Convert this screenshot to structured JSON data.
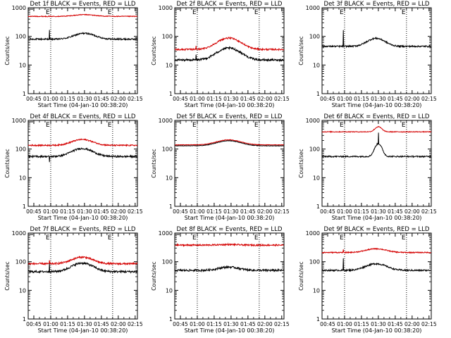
{
  "chart_data": [
    {
      "type": "line",
      "title": "Det 1f BLACK = Events, RED = LLD",
      "xlabel": "Start Time (04-Jan-10 00:38:20)",
      "ylabel": "Counts/sec",
      "yscale": "log",
      "ylim": [
        1,
        1000
      ],
      "y_ticks": [
        "1",
        "10",
        "100",
        "1000"
      ],
      "x_ticks": [
        "00:45",
        "01:00",
        "01:15",
        "01:30",
        "01:45",
        "02:00",
        "02:15"
      ],
      "xlim_min": [
        40,
        137
      ],
      "markers": [
        {
          "t": 60,
          "label": "E"
        },
        {
          "t": 115,
          "label": "E"
        }
      ],
      "grid": false,
      "legend": "none",
      "series": [
        {
          "color": "#000000",
          "base": 80,
          "hump": 1.6,
          "hc": 90,
          "hw": 12,
          "spike": {
            "t": 59,
            "mult": 2.0
          },
          "noise": 0.06
        },
        {
          "color": "#d40000",
          "base": 500,
          "hump": 1.15,
          "hc": 90,
          "hw": 12,
          "spike": null,
          "noise": 0.03
        }
      ]
    },
    {
      "type": "line",
      "title": "Det 2f BLACK = Events, RED = LLD",
      "xlabel": "Start Time (04-Jan-10 00:38:20)",
      "ylabel": "Counts/sec",
      "yscale": "log",
      "ylim": [
        1,
        1000
      ],
      "y_ticks": [
        "1",
        "10",
        "100",
        "1000"
      ],
      "x_ticks": [
        "00:45",
        "01:00",
        "01:15",
        "01:30",
        "01:45",
        "02:00",
        "02:15"
      ],
      "xlim_min": [
        40,
        137
      ],
      "markers": [
        {
          "t": 60,
          "label": "E"
        },
        {
          "t": 115,
          "label": "E"
        }
      ],
      "grid": false,
      "legend": "none",
      "series": [
        {
          "color": "#000000",
          "base": 15,
          "hump": 2.6,
          "hc": 88,
          "hw": 13,
          "spike": {
            "t": 59,
            "mult": 1.5
          },
          "noise": 0.08
        },
        {
          "color": "#d40000",
          "base": 35,
          "hump": 2.5,
          "hc": 88,
          "hw": 13,
          "spike": {
            "t": 59,
            "mult": 1.3
          },
          "noise": 0.06
        }
      ]
    },
    {
      "type": "line",
      "title": "Det 3f BLACK = Events, RED = LLD",
      "xlabel": "Start Time (04-Jan-10 00:38:20)",
      "ylabel": "Counts/sec",
      "yscale": "log",
      "ylim": [
        1,
        1000
      ],
      "y_ticks": [
        "1",
        "10",
        "100",
        "1000"
      ],
      "x_ticks": [
        "00:45",
        "01:00",
        "01:15",
        "01:30",
        "01:45",
        "02:00",
        "02:15"
      ],
      "xlim_min": [
        40,
        137
      ],
      "markers": [
        {
          "t": 60,
          "label": "E"
        },
        {
          "t": 115,
          "label": "E"
        }
      ],
      "grid": false,
      "legend": "none",
      "series": [
        {
          "color": "#000000",
          "base": 45,
          "hump": 1.9,
          "hc": 88,
          "hw": 10,
          "spike": {
            "t": 59,
            "mult": 3.5
          },
          "noise": 0.06
        }
      ]
    },
    {
      "type": "line",
      "title": "Det 4f BLACK = Events, RED = LLD",
      "xlabel": "Start Time (04-Jan-10 00:38:20)",
      "ylabel": "Counts/sec",
      "yscale": "log",
      "ylim": [
        1,
        1000
      ],
      "y_ticks": [
        "1",
        "10",
        "100",
        "1000"
      ],
      "x_ticks": [
        "00:45",
        "01:00",
        "01:15",
        "01:30",
        "01:45",
        "02:00",
        "02:15"
      ],
      "xlim_min": [
        40,
        137
      ],
      "markers": [
        {
          "t": 60,
          "label": "E"
        },
        {
          "t": 115,
          "label": "E"
        }
      ],
      "grid": false,
      "legend": "none",
      "series": [
        {
          "color": "#000000",
          "base": 55,
          "hump": 1.9,
          "hc": 88,
          "hw": 12,
          "spike": {
            "t": 59,
            "mult": 0.6
          },
          "noise": 0.07
        },
        {
          "color": "#d40000",
          "base": 135,
          "hump": 1.6,
          "hc": 88,
          "hw": 12,
          "spike": null,
          "noise": 0.05
        }
      ]
    },
    {
      "type": "line",
      "title": "Det 5f BLACK = Events, RED = LLD",
      "xlabel": "Start Time (04-Jan-10 00:38:20)",
      "ylabel": "Counts/sec",
      "yscale": "log",
      "ylim": [
        1,
        1000
      ],
      "y_ticks": [
        "1",
        "10",
        "100",
        "1000"
      ],
      "x_ticks": [
        "00:45",
        "01:00",
        "01:15",
        "01:30",
        "01:45",
        "02:00",
        "02:15"
      ],
      "xlim_min": [
        40,
        137
      ],
      "markers": [
        {
          "t": 60,
          "label": "E"
        },
        {
          "t": 115,
          "label": "E"
        }
      ],
      "grid": false,
      "legend": "none",
      "series": [
        {
          "color": "#000000",
          "base": 130,
          "hump": 1.5,
          "hc": 88,
          "hw": 14,
          "spike": null,
          "noise": 0.02
        },
        {
          "color": "#d40000",
          "base": 140,
          "hump": 1.5,
          "hc": 88,
          "hw": 14,
          "spike": null,
          "noise": 0.02
        }
      ]
    },
    {
      "type": "line",
      "title": "Det 6f BLACK = Events, RED = LLD",
      "xlabel": "Start Time (04-Jan-10 00:38:20)",
      "ylabel": "Counts/sec",
      "yscale": "log",
      "ylim": [
        1,
        1000
      ],
      "y_ticks": [
        "1",
        "10",
        "100",
        "1000"
      ],
      "x_ticks": [
        "00:45",
        "01:00",
        "01:15",
        "01:30",
        "01:45",
        "02:00",
        "02:15"
      ],
      "xlim_min": [
        40,
        137
      ],
      "markers": [
        {
          "t": 60,
          "label": "E"
        },
        {
          "t": 115,
          "label": "E"
        }
      ],
      "grid": false,
      "legend": "none",
      "series": [
        {
          "color": "#000000",
          "base": 55,
          "hump": 1.0,
          "hc": 88,
          "hw": 12,
          "spike": {
            "t": 90,
            "mult": 2.5
          },
          "noise": 0.05,
          "peak": {
            "t": 90,
            "w": 4,
            "mult": 2.8
          }
        },
        {
          "color": "#d40000",
          "base": 400,
          "hump": 1.0,
          "hc": 88,
          "hw": 12,
          "spike": null,
          "noise": 0.03,
          "peak": {
            "t": 90,
            "w": 4,
            "mult": 1.5
          }
        }
      ]
    },
    {
      "type": "line",
      "title": "Det 7f BLACK = Events, RED = LLD",
      "xlabel": "Start Time (04-Jan-10 00:38:20)",
      "ylabel": "Counts/sec",
      "yscale": "log",
      "ylim": [
        1,
        1000
      ],
      "y_ticks": [
        "1",
        "10",
        "100",
        "1000"
      ],
      "x_ticks": [
        "00:45",
        "01:00",
        "01:15",
        "01:30",
        "01:45",
        "02:00",
        "02:15"
      ],
      "xlim_min": [
        40,
        137
      ],
      "markers": [
        {
          "t": 60,
          "label": "E"
        },
        {
          "t": 115,
          "label": "E"
        }
      ],
      "grid": false,
      "legend": "none",
      "series": [
        {
          "color": "#000000",
          "base": 45,
          "hump": 2.0,
          "hc": 88,
          "hw": 12,
          "spike": {
            "t": 59,
            "mult": 2.2
          },
          "noise": 0.08
        },
        {
          "color": "#d40000",
          "base": 85,
          "hump": 1.7,
          "hc": 88,
          "hw": 12,
          "spike": {
            "t": 59,
            "mult": 1.3
          },
          "noise": 0.07
        }
      ]
    },
    {
      "type": "line",
      "title": "Det 8f BLACK = Events, RED = LLD",
      "xlabel": "Start Time (04-Jan-10 00:38:20)",
      "ylabel": "Counts/sec",
      "yscale": "log",
      "ylim": [
        1,
        1000
      ],
      "y_ticks": [
        "1",
        "10",
        "100",
        "1000"
      ],
      "x_ticks": [
        "00:45",
        "01:00",
        "01:15",
        "01:30",
        "01:45",
        "02:00",
        "02:15"
      ],
      "xlim_min": [
        40,
        137
      ],
      "markers": [
        {
          "t": 60,
          "label": "E"
        },
        {
          "t": 115,
          "label": "E"
        }
      ],
      "grid": false,
      "legend": "none",
      "series": [
        {
          "color": "#000000",
          "base": 50,
          "hump": 1.3,
          "hc": 88,
          "hw": 12,
          "spike": null,
          "noise": 0.08
        },
        {
          "color": "#d40000",
          "base": 380,
          "hump": 1.05,
          "hc": 88,
          "hw": 12,
          "spike": null,
          "noise": 0.06
        }
      ]
    },
    {
      "type": "line",
      "title": "Det 9f BLACK = Events, RED = LLD",
      "xlabel": "Start Time (04-Jan-10 00:38:20)",
      "ylabel": "Counts/sec",
      "yscale": "log",
      "ylim": [
        1,
        1000
      ],
      "y_ticks": [
        "1",
        "10",
        "100",
        "1000"
      ],
      "x_ticks": [
        "00:45",
        "01:00",
        "01:15",
        "01:30",
        "01:45",
        "02:00",
        "02:15"
      ],
      "xlim_min": [
        40,
        137
      ],
      "markers": [
        {
          "t": 60,
          "label": "E"
        },
        {
          "t": 115,
          "label": "E"
        }
      ],
      "grid": false,
      "legend": "none",
      "series": [
        {
          "color": "#000000",
          "base": 50,
          "hump": 1.7,
          "hc": 88,
          "hw": 12,
          "spike": {
            "t": 59,
            "mult": 2.5
          },
          "noise": 0.06
        },
        {
          "color": "#d40000",
          "base": 210,
          "hump": 1.35,
          "hc": 88,
          "hw": 12,
          "spike": {
            "t": 59,
            "mult": 1.3
          },
          "noise": 0.04
        }
      ]
    }
  ]
}
